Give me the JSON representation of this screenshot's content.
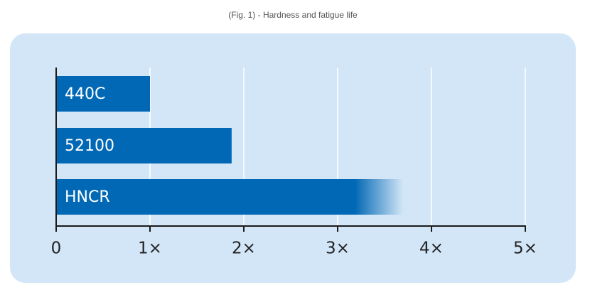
{
  "chart_data": {
    "type": "bar",
    "orientation": "horizontal",
    "title": "(Fig. 1) - Hardness and fatigue life",
    "categories": [
      "440C",
      "52100",
      "HNCR"
    ],
    "values": [
      1,
      1.87,
      3.7
    ],
    "color": "#0068b4",
    "xlim": [
      0,
      5
    ],
    "xticks": [
      0,
      {
        "value": 1,
        "label": "1×"
      },
      {
        "value": 2,
        "label": "2×"
      },
      {
        "value": 3,
        "label": "3×"
      },
      {
        "value": 4,
        "label": "4×"
      },
      {
        "value": 5,
        "label": "5×"
      }
    ],
    "grid": true
  }
}
